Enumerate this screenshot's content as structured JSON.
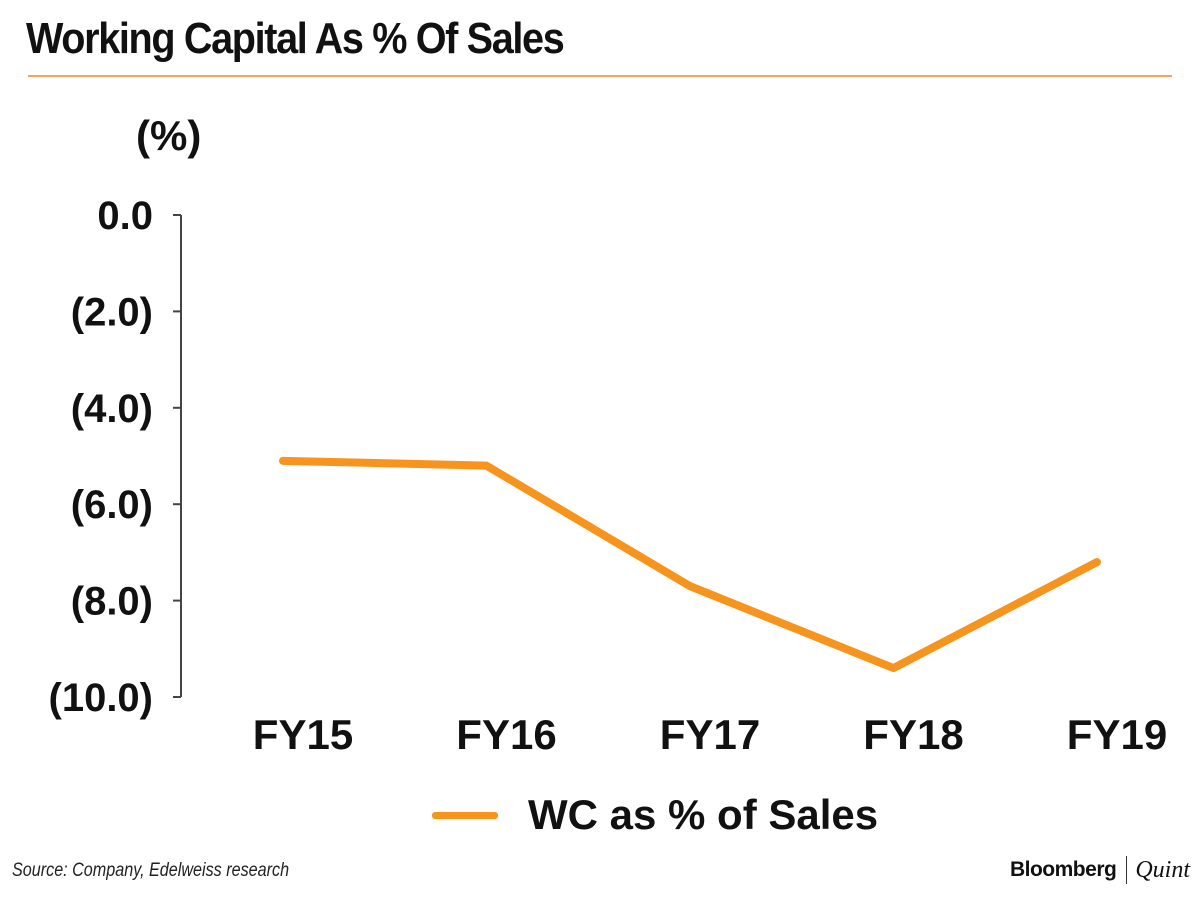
{
  "title": "Working Capital As % Of Sales",
  "source": "Source: Company, Edelweiss research",
  "brand": {
    "name": "Bloomberg",
    "sub": "Quint"
  },
  "colors": {
    "accent": "#f7941d",
    "rule": "#f4a460",
    "axis": "#444444",
    "text": "#111111"
  },
  "chart_data": {
    "type": "line",
    "ylabel": "(%)",
    "categories": [
      "FY15",
      "FY16",
      "FY17",
      "FY18",
      "FY19"
    ],
    "series": [
      {
        "name": "WC as % of Sales",
        "values": [
          -5.1,
          -5.2,
          -7.7,
          -9.4,
          -7.2
        ]
      }
    ],
    "ylim": [
      -10,
      0
    ],
    "yticks": [
      0,
      -2,
      -4,
      -6,
      -8,
      -10
    ],
    "ytick_labels": [
      "0.0",
      "(2.0)",
      "(4.0)",
      "(6.0)",
      "(8.0)",
      "(10.0)"
    ],
    "grid": false,
    "legend": "bottom-center"
  }
}
